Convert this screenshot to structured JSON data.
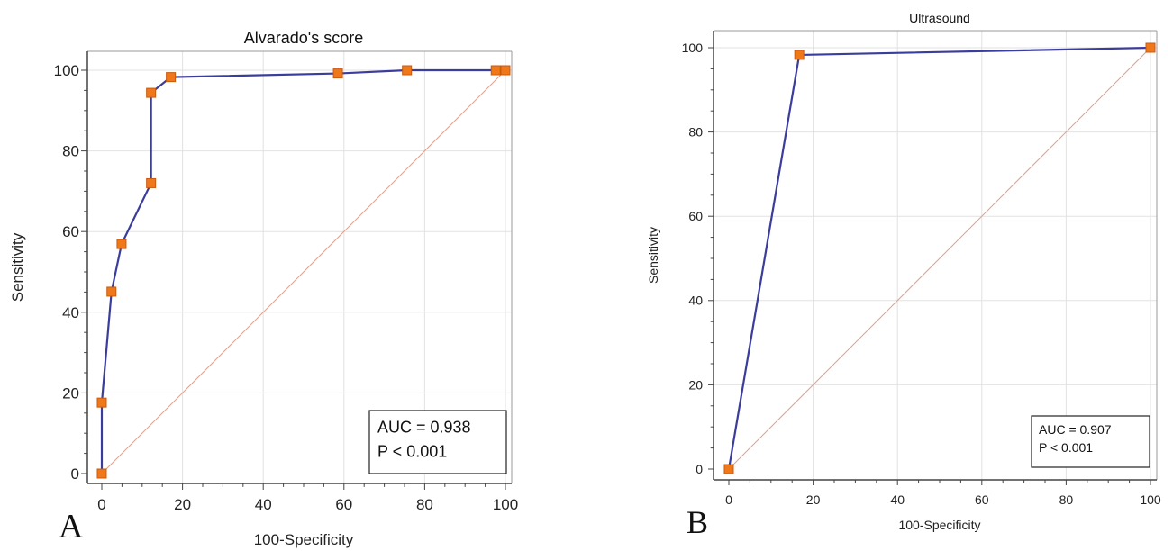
{
  "chart_data": [
    {
      "type": "line",
      "panel_letter": "A",
      "title": "Alvarado's score",
      "xlabel": "100-Specificity",
      "ylabel": "Sensitivity",
      "xlim": [
        0,
        100
      ],
      "ylim": [
        0,
        100
      ],
      "x_ticks": [
        0,
        20,
        40,
        60,
        80,
        100
      ],
      "y_ticks": [
        0,
        20,
        40,
        60,
        80,
        100
      ],
      "grid": true,
      "series": [
        {
          "x": [
            0,
            0,
            2.4,
            4.9,
            12.2,
            12.2,
            17.1,
            58.5,
            75.6,
            97.6,
            100
          ],
          "y": [
            0,
            17.6,
            45.1,
            56.9,
            72.0,
            94.4,
            98.3,
            99.2,
            100,
            100,
            100
          ]
        }
      ],
      "reference_line": true,
      "annotation": [
        "AUC = 0.938",
        "P < 0.001"
      ],
      "annotation_position": "bottom-right",
      "colors": {
        "curve": "#3b3d9c",
        "marker": "#f07818",
        "marker_edge": "#c85a10",
        "reference": "#e0a090"
      }
    },
    {
      "type": "line",
      "panel_letter": "B",
      "title": "Ultrasound",
      "xlabel": "100-Specificity",
      "ylabel": "Sensitivity",
      "xlim": [
        0,
        100
      ],
      "ylim": [
        0,
        100
      ],
      "x_ticks": [
        0,
        20,
        40,
        60,
        80,
        100
      ],
      "y_ticks": [
        0,
        20,
        40,
        60,
        80,
        100
      ],
      "grid": true,
      "series": [
        {
          "x": [
            0,
            16.7,
            100
          ],
          "y": [
            0,
            98.3,
            100
          ]
        }
      ],
      "reference_line": true,
      "annotation": [
        "AUC = 0.907",
        "P < 0.001"
      ],
      "annotation_position": "bottom-right",
      "colors": {
        "curve": "#3b3d9c",
        "marker": "#f07818",
        "marker_edge": "#c85a10",
        "reference": "#e0a090"
      }
    }
  ]
}
